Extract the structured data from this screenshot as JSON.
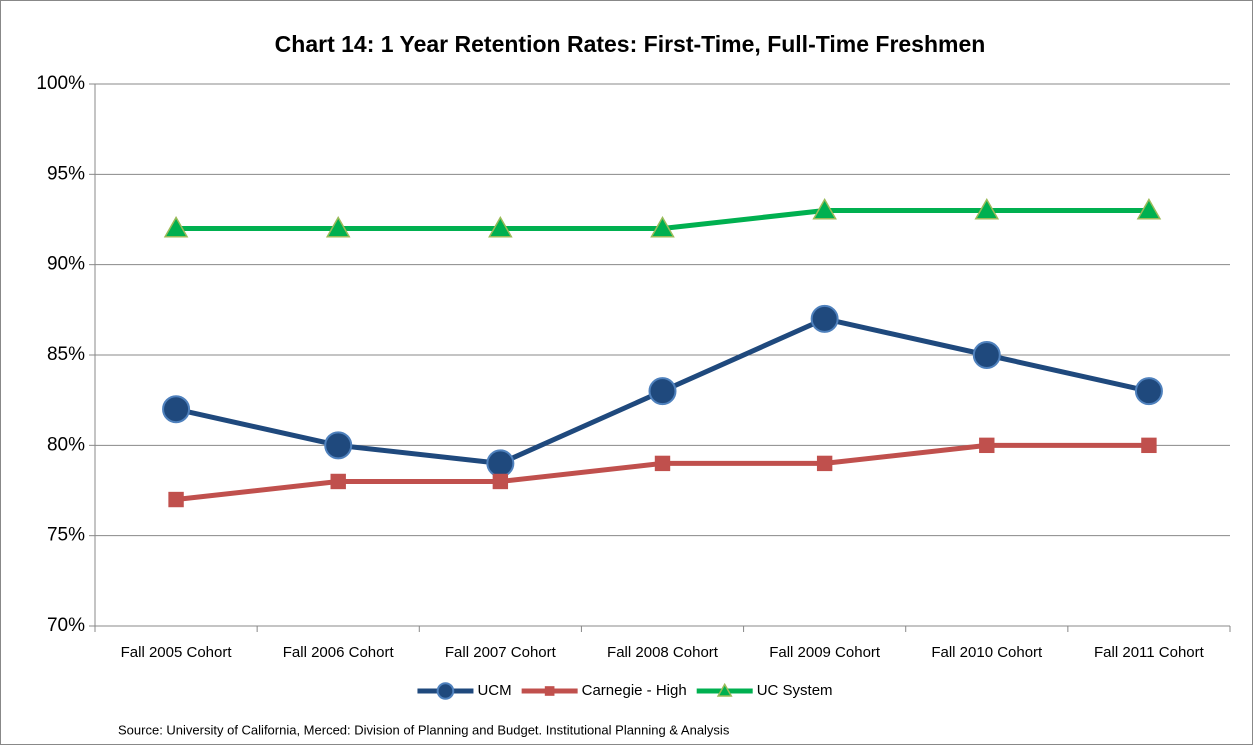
{
  "chart_data": {
    "type": "line",
    "title": "Chart 14: 1 Year Retention Rates: First-Time, Full-Time Freshmen",
    "categories": [
      "Fall 2005 Cohort",
      "Fall 2006 Cohort",
      "Fall 2007 Cohort",
      "Fall 2008 Cohort",
      "Fall 2009 Cohort",
      "Fall 2010 Cohort",
      "Fall 2011 Cohort"
    ],
    "series": [
      {
        "name": "UCM",
        "color": "#1f497d",
        "marker": "circle",
        "values": [
          82,
          80,
          79,
          83,
          87,
          85,
          83
        ]
      },
      {
        "name": "Carnegie - High",
        "color": "#c0504d",
        "marker": "square",
        "values": [
          77,
          78,
          78,
          79,
          79,
          80,
          80
        ]
      },
      {
        "name": "UC System",
        "color": "#00b050",
        "marker": "triangle",
        "values": [
          92,
          92,
          92,
          92,
          93,
          93,
          93
        ]
      }
    ],
    "ylim": [
      70,
      100
    ],
    "yticks": [
      {
        "value": 70,
        "label": "70%"
      },
      {
        "value": 75,
        "label": "75%"
      },
      {
        "value": 80,
        "label": "80%"
      },
      {
        "value": 85,
        "label": "85%"
      },
      {
        "value": 90,
        "label": "90%"
      },
      {
        "value": 95,
        "label": "95%"
      },
      {
        "value": 100,
        "label": "100%"
      }
    ],
    "grid": true,
    "legend": "bottom",
    "source": "Source: University of California, Merced: Division of Planning and Budget.  Institutional Planning & Analysis"
  }
}
